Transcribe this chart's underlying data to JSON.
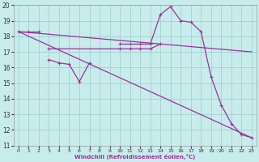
{
  "xlabel": "Windchill (Refroidissement éolien,°C)",
  "xlim": [
    -0.5,
    23.5
  ],
  "ylim": [
    11,
    20
  ],
  "yticks": [
    11,
    12,
    13,
    14,
    15,
    16,
    17,
    18,
    19,
    20
  ],
  "xticks": [
    0,
    1,
    2,
    3,
    4,
    5,
    6,
    7,
    8,
    9,
    10,
    11,
    12,
    13,
    14,
    15,
    16,
    17,
    18,
    19,
    20,
    21,
    22,
    23
  ],
  "background_color": "#c8ecec",
  "grid_color": "#a8d4d4",
  "line_color": "#993399",
  "trend1": {
    "x": [
      0,
      23
    ],
    "y": [
      18.3,
      17.0
    ]
  },
  "trend2": {
    "x": [
      0,
      23
    ],
    "y": [
      18.3,
      11.5
    ]
  },
  "line_flat": {
    "x": [
      0,
      1,
      2
    ],
    "y": [
      18.3,
      18.3,
      18.3
    ]
  },
  "line_mid": {
    "x": [
      3,
      10,
      11,
      12,
      13,
      14
    ],
    "y": [
      17.2,
      17.2,
      17.2,
      17.2,
      17.2,
      17.5
    ]
  },
  "line_zigzag": {
    "x": [
      3,
      4,
      5,
      6,
      7
    ],
    "y": [
      16.5,
      16.3,
      16.2,
      15.1,
      16.3
    ]
  },
  "line_peak": {
    "x": [
      10,
      11,
      12,
      13,
      14,
      15,
      16,
      17,
      18,
      19,
      20,
      21,
      22,
      23
    ],
    "y": [
      17.5,
      17.5,
      17.5,
      17.5,
      19.4,
      19.9,
      19.0,
      18.9,
      18.3,
      15.4,
      13.6,
      12.4,
      11.7,
      11.5
    ]
  }
}
